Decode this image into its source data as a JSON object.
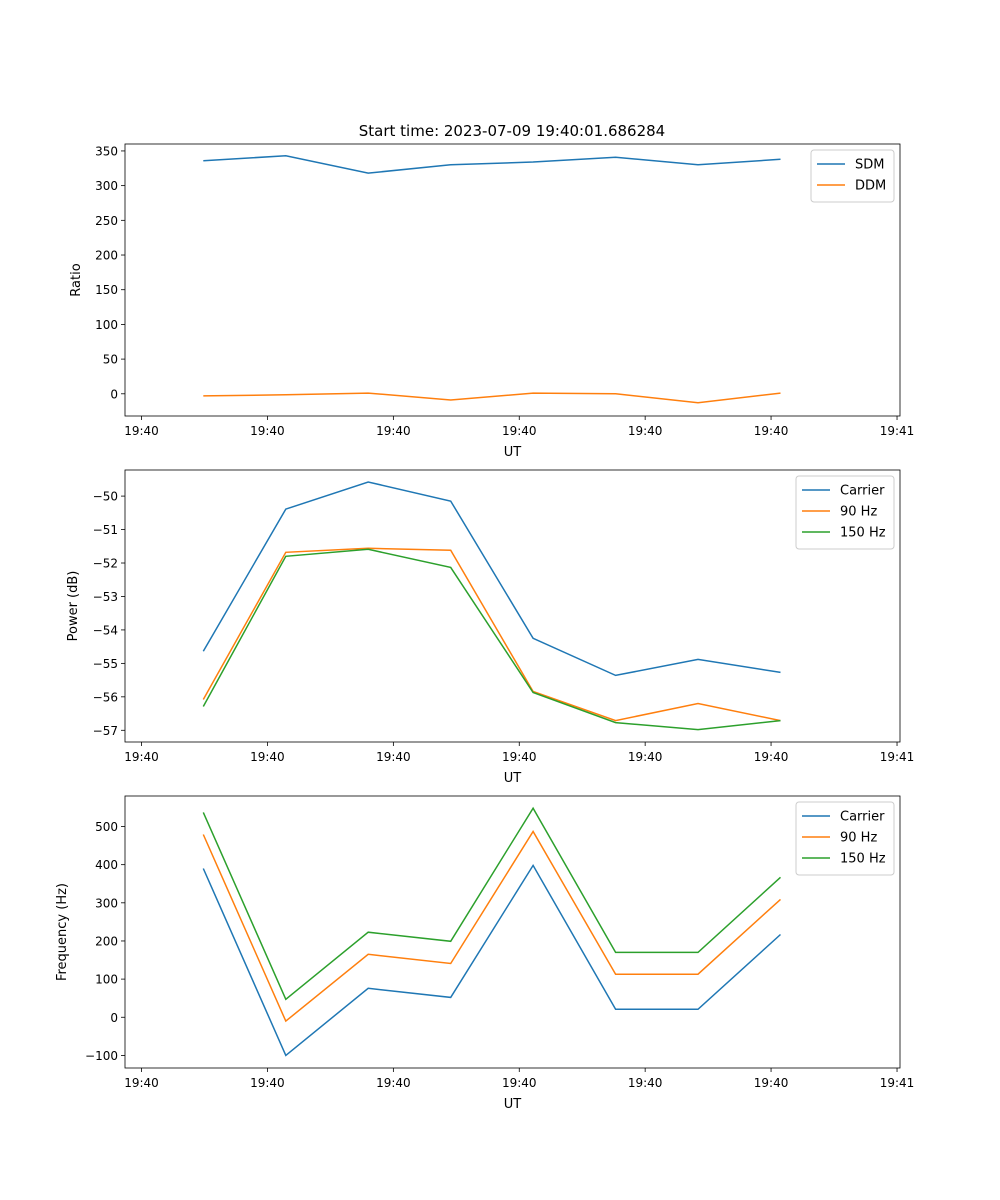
{
  "title": "Start time: 2023-07-09 19:40:01.686284",
  "colors": {
    "blue": "#1f77b4",
    "orange": "#ff7f0e",
    "green": "#2ca02c"
  },
  "chart_data": [
    {
      "type": "line",
      "xlabel": "UT",
      "ylabel": "Ratio",
      "x": [
        0,
        1,
        2,
        3,
        4,
        5,
        6,
        7
      ],
      "xlim": [
        -0.95,
        8.45
      ],
      "xticks": [
        -0.75,
        0.777,
        2.305,
        3.832,
        5.359,
        6.886,
        8.414
      ],
      "xtick_labels": [
        "19:40",
        "19:40",
        "19:40",
        "19:40",
        "19:40",
        "19:40",
        "19:41"
      ],
      "ylim": [
        -32,
        360
      ],
      "yticks": [
        0,
        50,
        100,
        150,
        200,
        250,
        300,
        350
      ],
      "ytick_labels": [
        "0",
        "50",
        "100",
        "150",
        "200",
        "250",
        "300",
        "350"
      ],
      "legend": "top-right",
      "series": [
        {
          "name": "SDM",
          "color": "#1f77b4",
          "values": [
            336,
            343,
            318,
            330,
            334,
            341,
            330,
            338
          ]
        },
        {
          "name": "DDM",
          "color": "#ff7f0e",
          "values": [
            -3,
            -1.5,
            1,
            -9,
            1,
            0,
            -13,
            1
          ]
        }
      ]
    },
    {
      "type": "line",
      "xlabel": "UT",
      "ylabel": "Power (dB)",
      "x": [
        0,
        1,
        2,
        3,
        4,
        5,
        6,
        7
      ],
      "xlim": [
        -0.95,
        8.45
      ],
      "xticks": [
        -0.75,
        0.777,
        2.305,
        3.832,
        5.359,
        6.886,
        8.414
      ],
      "xtick_labels": [
        "19:40",
        "19:40",
        "19:40",
        "19:40",
        "19:40",
        "19:40",
        "19:41"
      ],
      "ylim": [
        -57.35,
        -49.22
      ],
      "yticks": [
        -57,
        -56,
        -55,
        -54,
        -53,
        -52,
        -51,
        -50
      ],
      "ytick_labels": [
        "−57",
        "−56",
        "−55",
        "−54",
        "−53",
        "−52",
        "−51",
        "−50"
      ],
      "legend": "top-right",
      "series": [
        {
          "name": "Carrier",
          "color": "#1f77b4",
          "values": [
            -54.64,
            -50.39,
            -49.58,
            -50.15,
            -54.25,
            -55.36,
            -54.88,
            -55.27
          ]
        },
        {
          "name": "90 Hz",
          "color": "#ff7f0e",
          "values": [
            -56.08,
            -51.68,
            -51.56,
            -51.62,
            -55.84,
            -56.71,
            -56.2,
            -56.71
          ]
        },
        {
          "name": "150 Hz",
          "color": "#2ca02c",
          "values": [
            -56.29,
            -51.8,
            -51.59,
            -52.13,
            -55.87,
            -56.77,
            -56.98,
            -56.71
          ]
        }
      ]
    },
    {
      "type": "line",
      "xlabel": "UT",
      "ylabel": "Frequency (Hz)",
      "x": [
        0,
        1,
        2,
        3,
        4,
        5,
        6,
        7
      ],
      "xlim": [
        -0.95,
        8.45
      ],
      "xticks": [
        -0.75,
        0.777,
        2.305,
        3.832,
        5.359,
        6.886,
        8.414
      ],
      "xtick_labels": [
        "19:40",
        "19:40",
        "19:40",
        "19:40",
        "19:40",
        "19:40",
        "19:41"
      ],
      "ylim": [
        -133,
        580
      ],
      "yticks": [
        -100,
        0,
        100,
        200,
        300,
        400,
        500
      ],
      "ytick_labels": [
        "−100",
        "0",
        "100",
        "200",
        "300",
        "400",
        "500"
      ],
      "legend": "top-right",
      "series": [
        {
          "name": "Carrier",
          "color": "#1f77b4",
          "values": [
            390,
            -100,
            76,
            52,
            398,
            21,
            21,
            217
          ]
        },
        {
          "name": "90 Hz",
          "color": "#ff7f0e",
          "values": [
            479,
            -10,
            165,
            141,
            487,
            113,
            113,
            309
          ]
        },
        {
          "name": "150 Hz",
          "color": "#2ca02c",
          "values": [
            537,
            47,
            223,
            199,
            548,
            170,
            170,
            367
          ]
        }
      ]
    }
  ]
}
